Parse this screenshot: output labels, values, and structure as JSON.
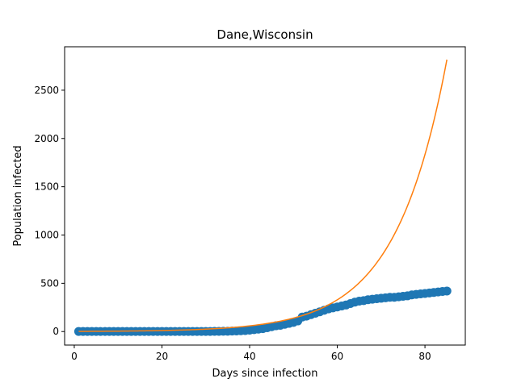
{
  "chart_data": {
    "type": "scatter",
    "title": "Dane,Wisconsin",
    "xlabel": "Days since infection",
    "ylabel": "Population infected",
    "xlim": [
      -2.2,
      89.2
    ],
    "ylim": [
      -140,
      2950
    ],
    "xticks": [
      0,
      20,
      40,
      60,
      80
    ],
    "yticks": [
      0,
      500,
      1000,
      1500,
      2000,
      2500
    ],
    "grid": false,
    "series": [
      {
        "kind": "scatter",
        "color": "#1f77b4",
        "x": [
          1,
          2,
          3,
          4,
          5,
          6,
          7,
          8,
          9,
          10,
          11,
          12,
          13,
          14,
          15,
          16,
          17,
          18,
          19,
          20,
          21,
          22,
          23,
          24,
          25,
          26,
          27,
          28,
          29,
          30,
          31,
          32,
          33,
          34,
          35,
          36,
          37,
          38,
          39,
          40,
          41,
          42,
          43,
          44,
          45,
          46,
          47,
          48,
          49,
          50,
          51,
          52,
          53,
          54,
          55,
          56,
          57,
          58,
          59,
          60,
          61,
          62,
          63,
          64,
          65,
          66,
          67,
          68,
          69,
          70,
          71,
          72,
          73,
          74,
          75,
          76,
          77,
          78,
          79,
          80,
          81,
          82,
          83,
          84,
          85
        ],
        "y": [
          1,
          1,
          1,
          1,
          1,
          1,
          1,
          1,
          1,
          1,
          1,
          1,
          1,
          1,
          1,
          1,
          1,
          1,
          1,
          1,
          1,
          1,
          1,
          1,
          1,
          1,
          1,
          1,
          1,
          1,
          1,
          2,
          2,
          3,
          3,
          5,
          6,
          8,
          10,
          15,
          20,
          25,
          30,
          40,
          50,
          60,
          65,
          75,
          85,
          95,
          110,
          150,
          160,
          175,
          190,
          205,
          220,
          235,
          245,
          255,
          265,
          275,
          290,
          305,
          315,
          320,
          330,
          335,
          340,
          345,
          350,
          355,
          355,
          360,
          365,
          370,
          380,
          385,
          390,
          395,
          400,
          405,
          410,
          415,
          420
        ]
      },
      {
        "kind": "line",
        "color": "#ff7f0e",
        "fit": {
          "a": 1.9,
          "b": 0.0859
        }
      }
    ]
  }
}
